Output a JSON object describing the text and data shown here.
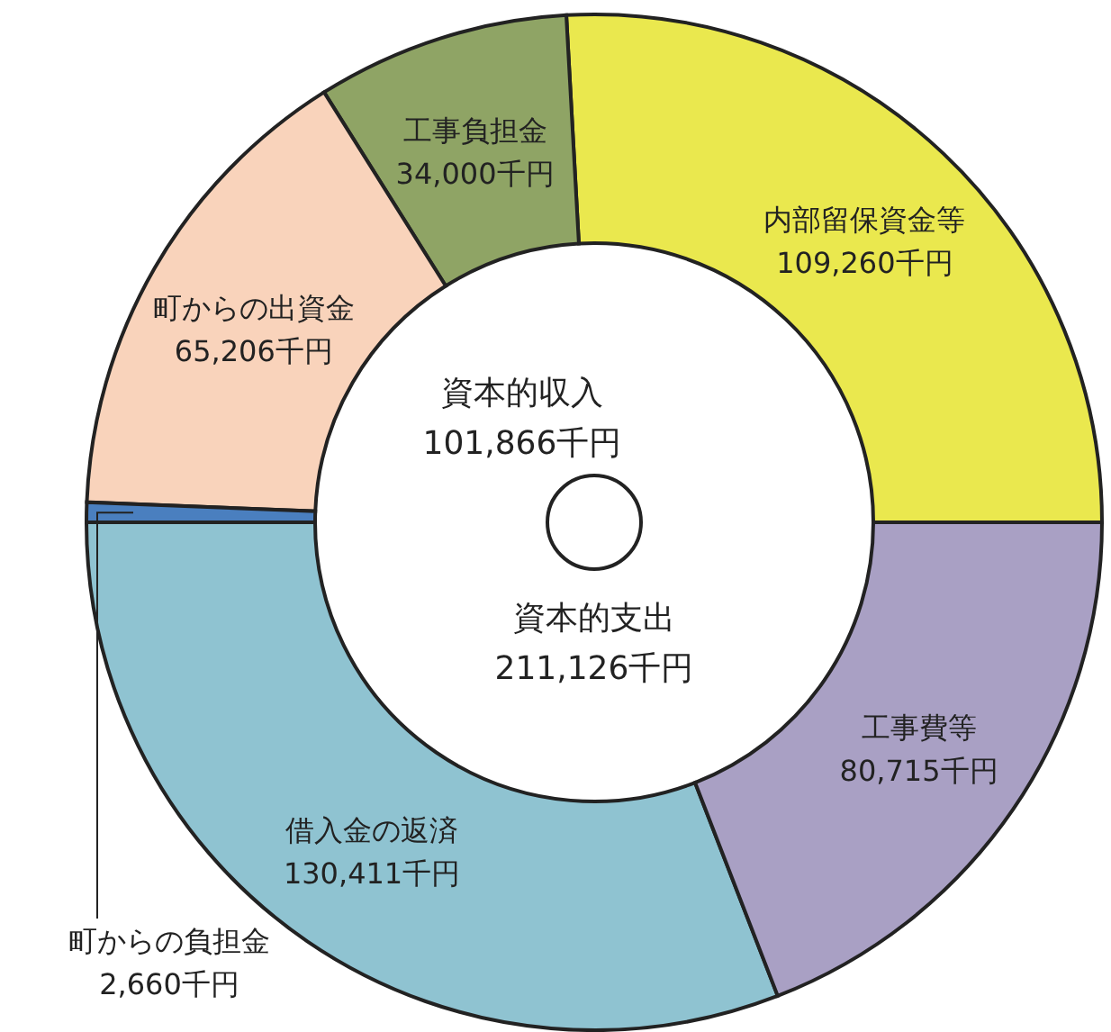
{
  "chart_data": [
    {
      "type": "donut",
      "title": "資本的収入",
      "subtitle": "101,866千円",
      "categories": [
        "内部留保資金等",
        "工事負担金",
        "町からの出資金",
        "町からの負担金"
      ],
      "values": [
        109260,
        34000,
        65206,
        2660
      ],
      "colors": [
        "#eae84e",
        "#8fa465",
        "#f9d3bb",
        "#4a7fbf"
      ],
      "value_labels": [
        "109,260千円",
        "34,000千円",
        "65,206千円",
        "2,660千円"
      ],
      "legend": false
    },
    {
      "type": "donut",
      "title": "資本的支出",
      "subtitle": "211,126千円",
      "categories": [
        "借入金の返済",
        "工事費等"
      ],
      "values": [
        130411,
        80715
      ],
      "colors": [
        "#8fc3d1",
        "#a9a0c4"
      ],
      "value_labels": [
        "130,411千円",
        "80,715千円"
      ],
      "legend": false
    }
  ]
}
